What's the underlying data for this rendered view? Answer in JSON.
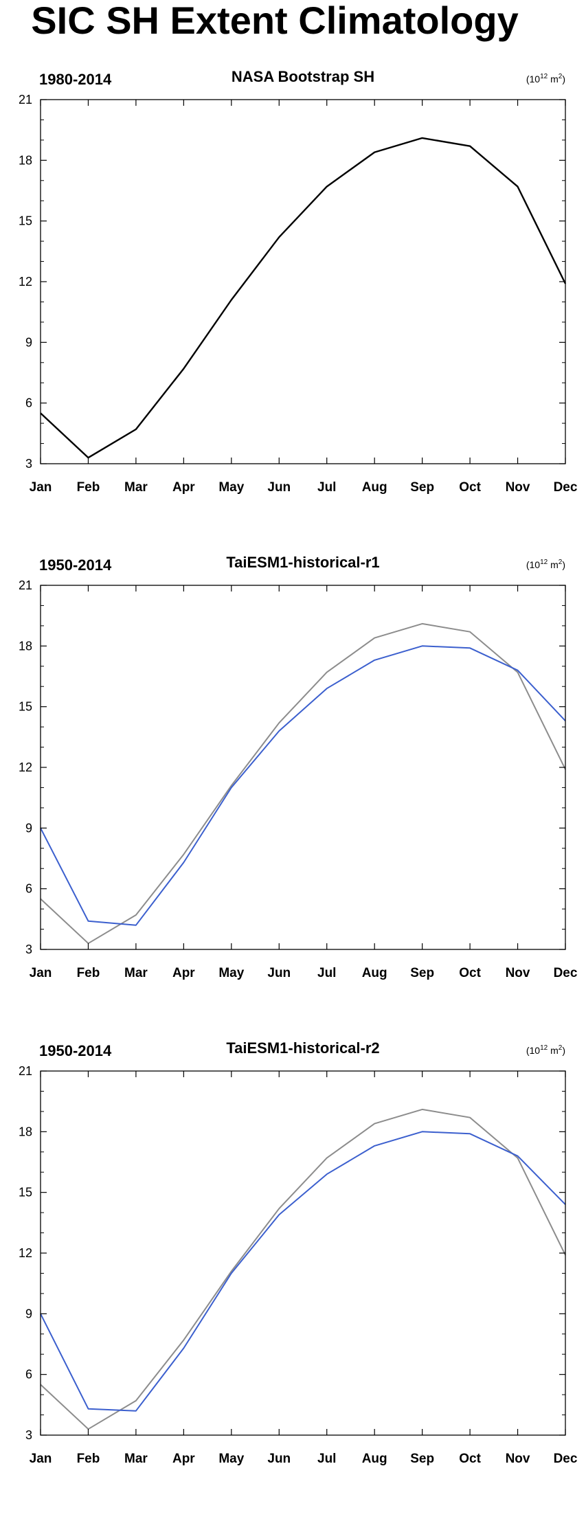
{
  "page_title": "SIC SH Extent Climatology",
  "chart_data": [
    {
      "type": "line",
      "period": "1980-2014",
      "title": "NASA Bootstrap SH",
      "units_base": "10",
      "units_exp": "12",
      "units_rest": "m",
      "units_rest_exp": "2",
      "categories": [
        "Jan",
        "Feb",
        "Mar",
        "Apr",
        "May",
        "Jun",
        "Jul",
        "Aug",
        "Sep",
        "Oct",
        "Nov",
        "Dec"
      ],
      "yticks": [
        3,
        6,
        9,
        12,
        15,
        18,
        21
      ],
      "ylim": [
        3,
        21
      ],
      "series": [
        {
          "color": "#000000",
          "values": [
            5.5,
            3.3,
            4.7,
            7.7,
            11.1,
            14.2,
            16.7,
            18.4,
            19.1,
            18.7,
            16.7,
            11.9
          ]
        }
      ]
    },
    {
      "type": "line",
      "period": "1950-2014",
      "title": "TaiESM1-historical-r1",
      "units_base": "10",
      "units_exp": "12",
      "units_rest": "m",
      "units_rest_exp": "2",
      "categories": [
        "Jan",
        "Feb",
        "Mar",
        "Apr",
        "May",
        "Jun",
        "Jul",
        "Aug",
        "Sep",
        "Oct",
        "Nov",
        "Dec"
      ],
      "yticks": [
        3,
        6,
        9,
        12,
        15,
        18,
        21
      ],
      "ylim": [
        3,
        21
      ],
      "series": [
        {
          "color": "#8c8c8c",
          "values": [
            5.5,
            3.3,
            4.7,
            7.7,
            11.1,
            14.2,
            16.7,
            18.4,
            19.1,
            18.7,
            16.7,
            11.9
          ]
        },
        {
          "color": "#3b5fce",
          "values": [
            9.0,
            4.4,
            4.2,
            7.3,
            11.0,
            13.8,
            15.9,
            17.3,
            18.0,
            17.9,
            16.8,
            14.3
          ]
        }
      ]
    },
    {
      "type": "line",
      "period": "1950-2014",
      "title": "TaiESM1-historical-r2",
      "units_base": "10",
      "units_exp": "12",
      "units_rest": "m",
      "units_rest_exp": "2",
      "categories": [
        "Jan",
        "Feb",
        "Mar",
        "Apr",
        "May",
        "Jun",
        "Jul",
        "Aug",
        "Sep",
        "Oct",
        "Nov",
        "Dec"
      ],
      "yticks": [
        3,
        6,
        9,
        12,
        15,
        18,
        21
      ],
      "ylim": [
        3,
        21
      ],
      "series": [
        {
          "color": "#8c8c8c",
          "values": [
            5.5,
            3.3,
            4.7,
            7.7,
            11.1,
            14.2,
            16.7,
            18.4,
            19.1,
            18.7,
            16.7,
            11.9
          ]
        },
        {
          "color": "#3b5fce",
          "values": [
            9.0,
            4.3,
            4.2,
            7.3,
            11.0,
            13.9,
            15.9,
            17.3,
            18.0,
            17.9,
            16.8,
            14.4
          ]
        }
      ]
    }
  ]
}
